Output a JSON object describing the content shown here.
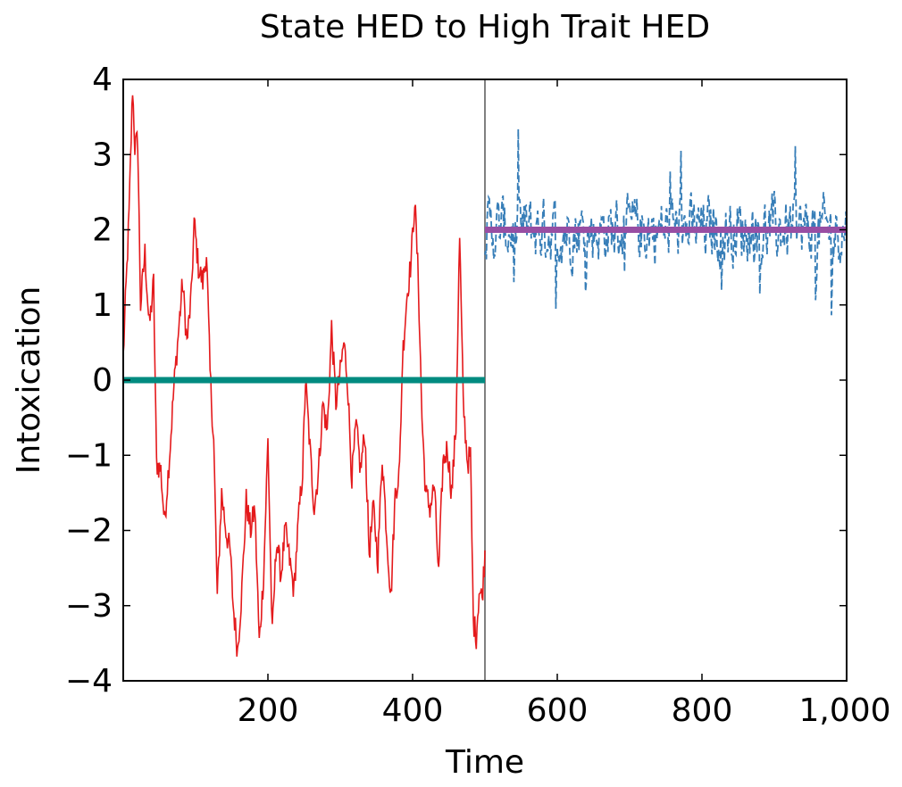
{
  "chart_data": {
    "type": "line",
    "title": "State HED to High Trait HED",
    "xlabel": "Time",
    "ylabel": "Intoxication",
    "xlim": [
      0,
      1000
    ],
    "ylim": [
      -4,
      4
    ],
    "x_ticks": [
      200,
      400,
      600,
      800,
      1000
    ],
    "x_tick_labels": [
      "200",
      "400",
      "600",
      "800",
      "1,000"
    ],
    "y_ticks": [
      4,
      3,
      2,
      1,
      0,
      -1,
      -2,
      -3,
      -4
    ],
    "y_tick_labels": [
      "4",
      "3",
      "2",
      "1",
      "0",
      "−1",
      "−2",
      "−3",
      "−4"
    ],
    "grid": false,
    "legend": "none",
    "vertical_line": {
      "x": 500,
      "color": "#808080"
    },
    "series": [
      {
        "style": "solid",
        "color": "#e41a1c",
        "x_start": 0,
        "x_end": 500,
        "anchors": [
          [
            0,
            0.3
          ],
          [
            8,
            2.2
          ],
          [
            13,
            3.9
          ],
          [
            16,
            3.1
          ],
          [
            20,
            3.2
          ],
          [
            24,
            1.0
          ],
          [
            30,
            1.7
          ],
          [
            36,
            0.7
          ],
          [
            42,
            1.3
          ],
          [
            46,
            -1.1
          ],
          [
            52,
            -1.2
          ],
          [
            57,
            -1.9
          ],
          [
            64,
            -1.0
          ],
          [
            70,
            -0.1
          ],
          [
            76,
            0.6
          ],
          [
            82,
            1.3
          ],
          [
            88,
            0.5
          ],
          [
            94,
            1.1
          ],
          [
            98,
            2.1
          ],
          [
            104,
            1.5
          ],
          [
            110,
            1.3
          ],
          [
            115,
            1.7
          ],
          [
            120,
            0.1
          ],
          [
            125,
            -0.8
          ],
          [
            130,
            -2.9
          ],
          [
            136,
            -1.5
          ],
          [
            142,
            -2.0
          ],
          [
            148,
            -2.3
          ],
          [
            152,
            -3.0
          ],
          [
            158,
            -3.6
          ],
          [
            164,
            -2.8
          ],
          [
            170,
            -1.6
          ],
          [
            176,
            -2.0
          ],
          [
            182,
            -1.7
          ],
          [
            188,
            -3.5
          ],
          [
            194,
            -2.6
          ],
          [
            200,
            -0.8
          ],
          [
            206,
            -3.4
          ],
          [
            212,
            -2.1
          ],
          [
            218,
            -2.6
          ],
          [
            224,
            -2.0
          ],
          [
            230,
            -2.4
          ],
          [
            236,
            -2.8
          ],
          [
            242,
            -1.9
          ],
          [
            248,
            -1.2
          ],
          [
            252,
            0.0
          ],
          [
            258,
            -0.9
          ],
          [
            264,
            -1.7
          ],
          [
            270,
            -1.2
          ],
          [
            276,
            -0.3
          ],
          [
            282,
            -0.7
          ],
          [
            288,
            0.7
          ],
          [
            294,
            -0.3
          ],
          [
            300,
            0.1
          ],
          [
            305,
            0.5
          ],
          [
            310,
            0.0
          ],
          [
            316,
            -1.3
          ],
          [
            322,
            -0.6
          ],
          [
            328,
            -1.2
          ],
          [
            334,
            -0.7
          ],
          [
            340,
            -2.3
          ],
          [
            346,
            -1.7
          ],
          [
            352,
            -2.4
          ],
          [
            358,
            -1.0
          ],
          [
            364,
            -2.0
          ],
          [
            370,
            -2.9
          ],
          [
            376,
            -1.5
          ],
          [
            382,
            -1.2
          ],
          [
            386,
            0.3
          ],
          [
            392,
            1.1
          ],
          [
            398,
            1.6
          ],
          [
            403,
            2.4
          ],
          [
            408,
            1.3
          ],
          [
            413,
            -0.5
          ],
          [
            418,
            -1.5
          ],
          [
            424,
            -1.7
          ],
          [
            430,
            -1.4
          ],
          [
            436,
            -2.6
          ],
          [
            442,
            -1.1
          ],
          [
            448,
            -0.9
          ],
          [
            454,
            -1.5
          ],
          [
            460,
            -0.6
          ],
          [
            465,
            1.9
          ],
          [
            470,
            -0.3
          ],
          [
            476,
            -1.1
          ],
          [
            480,
            -1.0
          ],
          [
            484,
            -3.2
          ],
          [
            488,
            -3.4
          ],
          [
            492,
            -2.8
          ],
          [
            496,
            -2.9
          ],
          [
            500,
            -2.3
          ]
        ],
        "noise_amplitude": 0.18
      },
      {
        "style": "dashed",
        "color": "#377eb8",
        "x_start": 500,
        "x_end": 1000,
        "mean": 2.0,
        "range_observed": [
          0.7,
          3.7
        ],
        "noise_amplitude": 0.35
      },
      {
        "style": "thick",
        "color": "#008b80",
        "x_start": 0,
        "x_end": 500,
        "values": [
          0,
          0
        ]
      },
      {
        "style": "thick",
        "color": "#984ea3",
        "x_start": 500,
        "x_end": 1000,
        "values": [
          2,
          2
        ]
      }
    ]
  }
}
